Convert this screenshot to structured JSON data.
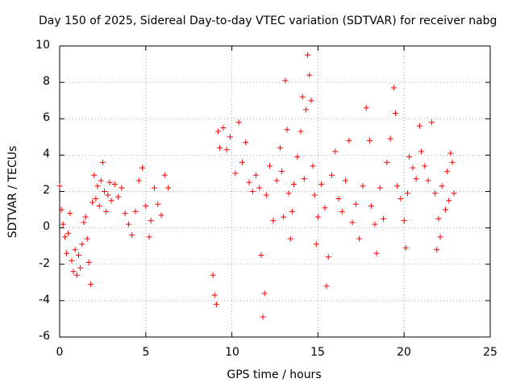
{
  "chart_data": {
    "type": "scatter",
    "title": "Day 150 of 2025, Sidereal Day-to-day VTEC variation (SDTVAR) for receiver nabg",
    "xlabel": "GPS time / hours",
    "ylabel": "SDTVAR / TECUs",
    "xlim": [
      0,
      25
    ],
    "ylim": [
      -6,
      10
    ],
    "xticks": [
      "0",
      "5",
      "10",
      "15",
      "20",
      "25"
    ],
    "yticks": [
      "-6",
      "-4",
      "-2",
      "0",
      "2",
      "4",
      "6",
      "8",
      "10"
    ],
    "grid": true,
    "marker": "+",
    "color": "#ff0000",
    "series": [
      {
        "name": "SDTVAR",
        "points": [
          [
            0.0,
            2.3
          ],
          [
            0.1,
            1.0
          ],
          [
            0.2,
            0.2
          ],
          [
            0.3,
            -0.5
          ],
          [
            0.4,
            -1.4
          ],
          [
            0.5,
            -0.3
          ],
          [
            0.6,
            0.8
          ],
          [
            0.7,
            -1.8
          ],
          [
            0.8,
            -2.4
          ],
          [
            0.9,
            -1.2
          ],
          [
            1.0,
            -2.6
          ],
          [
            1.1,
            -1.5
          ],
          [
            1.2,
            -2.2
          ],
          [
            1.3,
            -0.9
          ],
          [
            1.4,
            0.3
          ],
          [
            1.5,
            0.6
          ],
          [
            1.6,
            -0.6
          ],
          [
            1.7,
            -1.9
          ],
          [
            1.8,
            -3.1
          ],
          [
            1.9,
            1.4
          ],
          [
            2.0,
            2.9
          ],
          [
            2.1,
            1.6
          ],
          [
            2.2,
            2.3
          ],
          [
            2.3,
            1.2
          ],
          [
            2.4,
            2.6
          ],
          [
            2.5,
            3.6
          ],
          [
            2.6,
            2.0
          ],
          [
            2.7,
            0.9
          ],
          [
            2.8,
            1.8
          ],
          [
            2.9,
            2.5
          ],
          [
            3.0,
            1.5
          ],
          [
            3.2,
            2.4
          ],
          [
            3.4,
            1.7
          ],
          [
            3.6,
            2.2
          ],
          [
            3.8,
            0.8
          ],
          [
            4.0,
            0.2
          ],
          [
            4.2,
            -0.4
          ],
          [
            4.4,
            0.9
          ],
          [
            4.6,
            2.6
          ],
          [
            4.8,
            3.3
          ],
          [
            5.0,
            1.2
          ],
          [
            5.2,
            -0.5
          ],
          [
            5.3,
            0.4
          ],
          [
            5.5,
            2.2
          ],
          [
            5.7,
            1.3
          ],
          [
            5.9,
            0.7
          ],
          [
            6.1,
            2.9
          ],
          [
            6.3,
            2.2
          ],
          [
            8.9,
            -2.6
          ],
          [
            9.0,
            -3.7
          ],
          [
            9.1,
            -4.2
          ],
          [
            9.2,
            5.3
          ],
          [
            9.3,
            4.4
          ],
          [
            9.5,
            5.5
          ],
          [
            9.7,
            4.3
          ],
          [
            9.9,
            5.0
          ],
          [
            10.2,
            3.0
          ],
          [
            10.4,
            5.8
          ],
          [
            10.6,
            3.6
          ],
          [
            10.8,
            4.7
          ],
          [
            11.0,
            2.5
          ],
          [
            11.2,
            2.0
          ],
          [
            11.4,
            2.9
          ],
          [
            11.6,
            2.2
          ],
          [
            11.7,
            -1.5
          ],
          [
            11.8,
            -4.9
          ],
          [
            11.9,
            -3.6
          ],
          [
            12.0,
            1.8
          ],
          [
            12.2,
            3.4
          ],
          [
            12.4,
            0.4
          ],
          [
            12.6,
            2.6
          ],
          [
            12.8,
            4.4
          ],
          [
            12.9,
            3.1
          ],
          [
            13.0,
            0.6
          ],
          [
            13.1,
            8.1
          ],
          [
            13.2,
            5.4
          ],
          [
            13.3,
            1.9
          ],
          [
            13.4,
            -0.6
          ],
          [
            13.5,
            0.9
          ],
          [
            13.6,
            2.4
          ],
          [
            13.8,
            3.9
          ],
          [
            14.0,
            5.3
          ],
          [
            14.1,
            7.2
          ],
          [
            14.2,
            2.7
          ],
          [
            14.3,
            6.5
          ],
          [
            14.4,
            9.5
          ],
          [
            14.5,
            8.4
          ],
          [
            14.6,
            7.0
          ],
          [
            14.7,
            3.4
          ],
          [
            14.8,
            1.8
          ],
          [
            14.9,
            -0.9
          ],
          [
            15.0,
            0.6
          ],
          [
            15.2,
            2.4
          ],
          [
            15.4,
            1.1
          ],
          [
            15.5,
            -3.2
          ],
          [
            15.6,
            -1.6
          ],
          [
            15.8,
            2.9
          ],
          [
            16.0,
            4.2
          ],
          [
            16.2,
            1.6
          ],
          [
            16.4,
            0.9
          ],
          [
            16.6,
            2.6
          ],
          [
            16.8,
            4.8
          ],
          [
            17.0,
            0.3
          ],
          [
            17.2,
            1.3
          ],
          [
            17.4,
            -0.6
          ],
          [
            17.6,
            2.3
          ],
          [
            17.8,
            6.6
          ],
          [
            18.0,
            4.8
          ],
          [
            18.1,
            1.2
          ],
          [
            18.3,
            0.2
          ],
          [
            18.4,
            -1.4
          ],
          [
            18.6,
            2.2
          ],
          [
            18.8,
            0.5
          ],
          [
            19.0,
            3.6
          ],
          [
            19.2,
            4.9
          ],
          [
            19.4,
            7.7
          ],
          [
            19.5,
            6.3
          ],
          [
            19.6,
            2.3
          ],
          [
            19.8,
            1.6
          ],
          [
            20.0,
            0.4
          ],
          [
            20.1,
            -1.1
          ],
          [
            20.2,
            1.9
          ],
          [
            20.3,
            3.9
          ],
          [
            20.5,
            3.3
          ],
          [
            20.7,
            2.7
          ],
          [
            20.9,
            5.6
          ],
          [
            21.0,
            4.2
          ],
          [
            21.2,
            3.4
          ],
          [
            21.4,
            2.6
          ],
          [
            21.6,
            5.8
          ],
          [
            21.8,
            1.9
          ],
          [
            21.9,
            -1.2
          ],
          [
            22.0,
            0.5
          ],
          [
            22.1,
            -0.5
          ],
          [
            22.2,
            2.3
          ],
          [
            22.4,
            1.0
          ],
          [
            22.5,
            3.1
          ],
          [
            22.6,
            1.5
          ],
          [
            22.7,
            4.1
          ],
          [
            22.8,
            3.6
          ],
          [
            22.9,
            1.9
          ]
        ]
      }
    ]
  }
}
